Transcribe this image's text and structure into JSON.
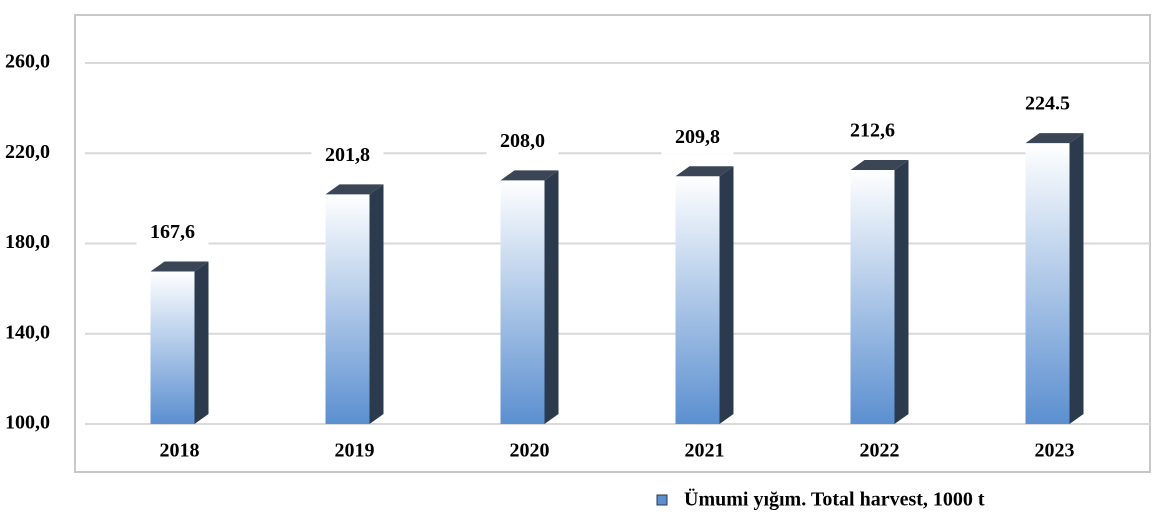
{
  "chart_data": {
    "type": "bar",
    "categories": [
      "2018",
      "2019",
      "2020",
      "2021",
      "2022",
      "2023"
    ],
    "series": [
      {
        "name": "Ümumi yığım. Total harvest, 1000 t",
        "color": "#5b8fd0",
        "values": [
          167.6,
          201.8,
          208.0,
          209.8,
          212.6,
          224.5
        ],
        "value_labels": [
          "167,6",
          "201,8",
          "208,0",
          "209,8",
          "212,6",
          "224.5"
        ]
      }
    ],
    "ylim": [
      100,
      270
    ],
    "yticks": [
      {
        "value": 100,
        "label": "100,0"
      },
      {
        "value": 140,
        "label": "140,0"
      },
      {
        "value": 180,
        "label": "180,0"
      },
      {
        "value": 220,
        "label": "220,0"
      },
      {
        "value": 260,
        "label": "260,0"
      }
    ],
    "grid": true
  }
}
